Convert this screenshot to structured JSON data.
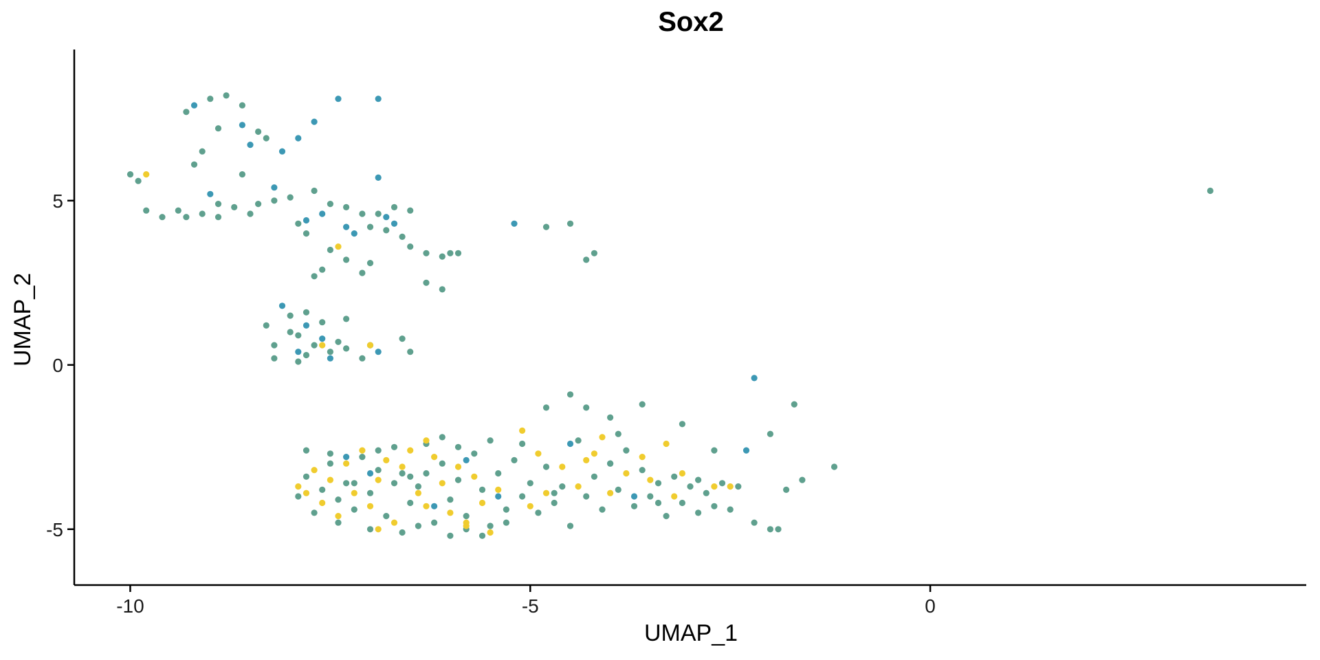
{
  "chart_data": {
    "type": "scatter",
    "title": "Sox2",
    "xlabel": "UMAP_1",
    "ylabel": "UMAP_2",
    "xlim": [
      -10.7,
      4.7
    ],
    "ylim": [
      -6.7,
      9.6
    ],
    "x_ticks": [
      {
        "value": -10,
        "label": "-10"
      },
      {
        "value": -5,
        "label": "-5"
      },
      {
        "value": 0,
        "label": "0"
      }
    ],
    "y_ticks": [
      {
        "value": -5,
        "label": "-5"
      },
      {
        "value": 0,
        "label": "0"
      },
      {
        "value": 5,
        "label": "5"
      }
    ],
    "grid": false,
    "legend": "none",
    "colors": {
      "low": "#3c98b4",
      "mid": "#5fa08e",
      "high": "#f0cc2e"
    },
    "series": [
      {
        "color": "#3c98b4",
        "points": [
          [
            -9.2,
            7.9
          ],
          [
            -9.0,
            5.2
          ],
          [
            -8.6,
            7.3
          ],
          [
            -8.5,
            6.7
          ],
          [
            -8.2,
            5.4
          ],
          [
            -8.1,
            6.5
          ],
          [
            -7.9,
            6.9
          ],
          [
            -7.7,
            7.4
          ],
          [
            -7.4,
            8.1
          ],
          [
            -6.9,
            8.1
          ],
          [
            -6.9,
            5.7
          ],
          [
            -7.8,
            4.4
          ],
          [
            -7.6,
            4.6
          ],
          [
            -7.3,
            4.2
          ],
          [
            -6.8,
            4.5
          ],
          [
            -6.7,
            4.3
          ],
          [
            -5.2,
            4.3
          ],
          [
            -7.2,
            4.0
          ],
          [
            -8.1,
            1.8
          ],
          [
            -7.8,
            1.2
          ],
          [
            -7.6,
            0.8
          ],
          [
            -7.9,
            0.4
          ],
          [
            -7.5,
            0.2
          ],
          [
            -6.9,
            0.4
          ],
          [
            -5.8,
            -2.9
          ],
          [
            -5.4,
            -4.0
          ],
          [
            -6.2,
            -4.3
          ],
          [
            -7.0,
            -3.3
          ],
          [
            -7.3,
            -2.8
          ],
          [
            -4.5,
            -2.4
          ],
          [
            -4.0,
            -3.0
          ],
          [
            -3.7,
            -4.0
          ],
          [
            -2.2,
            -0.4
          ],
          [
            -2.3,
            -2.6
          ]
        ]
      },
      {
        "color": "#5fa08e",
        "points": [
          [
            -10.0,
            5.8
          ],
          [
            -9.9,
            5.6
          ],
          [
            -9.4,
            4.7
          ],
          [
            -9.3,
            4.5
          ],
          [
            -9.1,
            4.6
          ],
          [
            -8.9,
            4.9
          ],
          [
            -8.7,
            4.8
          ],
          [
            -8.4,
            4.9
          ],
          [
            -8.0,
            5.1
          ],
          [
            -7.7,
            5.3
          ],
          [
            -9.3,
            7.7
          ],
          [
            -9.0,
            8.1
          ],
          [
            -8.8,
            8.2
          ],
          [
            -8.6,
            7.9
          ],
          [
            -8.4,
            7.1
          ],
          [
            -8.3,
            6.9
          ],
          [
            -9.1,
            6.5
          ],
          [
            -8.9,
            7.2
          ],
          [
            -8.6,
            5.8
          ],
          [
            -8.2,
            5.0
          ],
          [
            -9.2,
            6.1
          ],
          [
            -9.6,
            4.5
          ],
          [
            -9.8,
            4.7
          ],
          [
            -8.9,
            4.5
          ],
          [
            -8.5,
            4.6
          ],
          [
            -7.5,
            4.9
          ],
          [
            -7.3,
            4.8
          ],
          [
            -7.1,
            4.6
          ],
          [
            -7.0,
            4.2
          ],
          [
            -6.8,
            4.1
          ],
          [
            -6.6,
            3.9
          ],
          [
            -6.5,
            3.6
          ],
          [
            -6.3,
            3.4
          ],
          [
            -6.1,
            3.3
          ],
          [
            -6.0,
            3.4
          ],
          [
            -5.9,
            3.4
          ],
          [
            -7.0,
            3.1
          ],
          [
            -7.1,
            2.8
          ],
          [
            -7.5,
            3.5
          ],
          [
            -7.6,
            2.9
          ],
          [
            -7.7,
            2.7
          ],
          [
            -7.3,
            3.2
          ],
          [
            -6.9,
            4.6
          ],
          [
            -6.7,
            4.8
          ],
          [
            -6.5,
            4.7
          ],
          [
            -7.8,
            4.0
          ],
          [
            -7.9,
            4.3
          ],
          [
            -6.3,
            2.5
          ],
          [
            -6.1,
            2.3
          ],
          [
            -4.2,
            3.4
          ],
          [
            -4.3,
            3.2
          ],
          [
            -4.5,
            4.3
          ],
          [
            -4.8,
            4.2
          ],
          [
            -8.3,
            1.2
          ],
          [
            -8.2,
            0.6
          ],
          [
            -8.0,
            1.5
          ],
          [
            -7.9,
            0.9
          ],
          [
            -7.8,
            1.6
          ],
          [
            -7.7,
            0.6
          ],
          [
            -7.6,
            1.3
          ],
          [
            -7.5,
            0.4
          ],
          [
            -7.4,
            0.7
          ],
          [
            -8.2,
            0.2
          ],
          [
            -7.9,
            0.1
          ],
          [
            -7.3,
            0.5
          ],
          [
            -7.0,
            0.6
          ],
          [
            -6.6,
            0.8
          ],
          [
            -6.5,
            0.4
          ],
          [
            -7.8,
            0.3
          ],
          [
            -8.0,
            1.0
          ],
          [
            -7.3,
            1.4
          ],
          [
            -7.1,
            0.2
          ],
          [
            -7.8,
            -3.4
          ],
          [
            -7.6,
            -3.8
          ],
          [
            -7.5,
            -3.0
          ],
          [
            -7.4,
            -4.1
          ],
          [
            -7.3,
            -3.6
          ],
          [
            -7.2,
            -4.4
          ],
          [
            -7.1,
            -2.8
          ],
          [
            -7.0,
            -3.9
          ],
          [
            -6.9,
            -3.2
          ],
          [
            -6.8,
            -4.6
          ],
          [
            -6.7,
            -2.5
          ],
          [
            -6.6,
            -3.3
          ],
          [
            -6.5,
            -4.2
          ],
          [
            -6.4,
            -3.7
          ],
          [
            -6.3,
            -2.4
          ],
          [
            -6.2,
            -4.8
          ],
          [
            -6.1,
            -3.0
          ],
          [
            -6.0,
            -4.1
          ],
          [
            -5.9,
            -3.5
          ],
          [
            -5.8,
            -4.6
          ],
          [
            -5.7,
            -2.7
          ],
          [
            -5.6,
            -3.8
          ],
          [
            -5.5,
            -4.9
          ],
          [
            -5.4,
            -3.3
          ],
          [
            -5.3,
            -4.4
          ],
          [
            -5.2,
            -2.9
          ],
          [
            -5.1,
            -4.0
          ],
          [
            -5.0,
            -3.6
          ],
          [
            -4.9,
            -4.5
          ],
          [
            -4.8,
            -3.1
          ],
          [
            -4.7,
            -4.2
          ],
          [
            -4.6,
            -3.7
          ],
          [
            -4.5,
            -4.9
          ],
          [
            -4.4,
            -2.3
          ],
          [
            -4.3,
            -4.0
          ],
          [
            -4.2,
            -3.4
          ],
          [
            -4.1,
            -4.4
          ],
          [
            -4.0,
            -3.0
          ],
          [
            -3.9,
            -3.8
          ],
          [
            -3.8,
            -2.6
          ],
          [
            -3.7,
            -4.3
          ],
          [
            -3.6,
            -3.2
          ],
          [
            -3.5,
            -4.0
          ],
          [
            -3.4,
            -3.6
          ],
          [
            -3.3,
            -4.6
          ],
          [
            -3.2,
            -3.4
          ],
          [
            -3.1,
            -4.2
          ],
          [
            -3.0,
            -3.7
          ],
          [
            -2.9,
            -4.5
          ],
          [
            -2.8,
            -3.9
          ],
          [
            -2.7,
            -4.3
          ],
          [
            -2.6,
            -3.6
          ],
          [
            -2.5,
            -4.4
          ],
          [
            -2.4,
            -3.7
          ],
          [
            -2.2,
            -4.8
          ],
          [
            -2.0,
            -5.0
          ],
          [
            -1.8,
            -3.8
          ],
          [
            -1.6,
            -3.5
          ],
          [
            -1.2,
            -3.1
          ],
          [
            -1.7,
            -1.2
          ],
          [
            -2.0,
            -2.1
          ],
          [
            -3.6,
            -1.2
          ],
          [
            -4.0,
            -1.6
          ],
          [
            -4.3,
            -1.3
          ],
          [
            -4.5,
            -0.9
          ],
          [
            -3.9,
            -2.1
          ],
          [
            -3.1,
            -1.8
          ],
          [
            -2.7,
            -2.6
          ],
          [
            -5.1,
            -2.4
          ],
          [
            -4.8,
            -1.3
          ],
          [
            -1.9,
            -5.0
          ],
          [
            -7.9,
            -4.0
          ],
          [
            -7.7,
            -4.5
          ],
          [
            -7.0,
            -5.0
          ],
          [
            -6.6,
            -5.1
          ],
          [
            -6.4,
            -4.9
          ],
          [
            -6.0,
            -5.2
          ],
          [
            -5.8,
            -5.0
          ],
          [
            -5.6,
            -5.2
          ],
          [
            -5.3,
            -4.8
          ],
          [
            -5.9,
            -2.5
          ],
          [
            -6.9,
            -2.6
          ],
          [
            -7.5,
            -2.7
          ],
          [
            -7.8,
            -2.6
          ],
          [
            -6.3,
            -3.3
          ],
          [
            -6.1,
            -2.2
          ],
          [
            -5.5,
            -2.3
          ],
          [
            -7.4,
            -4.8
          ],
          [
            -6.7,
            -3.6
          ],
          [
            -6.5,
            -3.4
          ],
          [
            -7.2,
            -3.6
          ],
          [
            -4.7,
            -3.9
          ],
          [
            -3.4,
            -4.2
          ],
          [
            -2.9,
            -3.5
          ],
          [
            3.5,
            5.3
          ]
        ]
      },
      {
        "color": "#f0cc2e",
        "points": [
          [
            -9.8,
            5.8
          ],
          [
            -7.4,
            3.6
          ],
          [
            -7.6,
            0.6
          ],
          [
            -7.0,
            0.6
          ],
          [
            -7.9,
            -3.7
          ],
          [
            -7.7,
            -3.2
          ],
          [
            -7.6,
            -4.2
          ],
          [
            -7.5,
            -3.5
          ],
          [
            -7.4,
            -4.6
          ],
          [
            -7.3,
            -3.0
          ],
          [
            -7.2,
            -3.9
          ],
          [
            -7.1,
            -2.6
          ],
          [
            -7.0,
            -4.3
          ],
          [
            -6.9,
            -3.5
          ],
          [
            -6.8,
            -2.9
          ],
          [
            -6.7,
            -4.8
          ],
          [
            -6.6,
            -3.1
          ],
          [
            -6.5,
            -2.6
          ],
          [
            -6.4,
            -3.9
          ],
          [
            -6.3,
            -4.3
          ],
          [
            -6.2,
            -2.8
          ],
          [
            -6.1,
            -3.6
          ],
          [
            -6.0,
            -4.5
          ],
          [
            -5.9,
            -3.1
          ],
          [
            -5.8,
            -4.9
          ],
          [
            -5.7,
            -3.4
          ],
          [
            -5.6,
            -4.2
          ],
          [
            -5.5,
            -5.1
          ],
          [
            -5.4,
            -3.8
          ],
          [
            -5.1,
            -2.0
          ],
          [
            -5.0,
            -4.3
          ],
          [
            -4.8,
            -3.9
          ],
          [
            -4.6,
            -3.1
          ],
          [
            -4.4,
            -3.7
          ],
          [
            -4.2,
            -2.7
          ],
          [
            -4.1,
            -2.2
          ],
          [
            -4.0,
            -3.9
          ],
          [
            -3.8,
            -3.3
          ],
          [
            -3.6,
            -2.8
          ],
          [
            -3.5,
            -3.5
          ],
          [
            -3.3,
            -2.4
          ],
          [
            -3.2,
            -4.0
          ],
          [
            -3.1,
            -3.3
          ],
          [
            -2.7,
            -3.7
          ],
          [
            -2.5,
            -3.7
          ],
          [
            -4.3,
            -2.9
          ],
          [
            -4.9,
            -2.7
          ],
          [
            -6.9,
            -5.0
          ],
          [
            -7.8,
            -3.9
          ],
          [
            -6.3,
            -2.3
          ],
          [
            -5.8,
            -4.8
          ]
        ]
      }
    ]
  }
}
